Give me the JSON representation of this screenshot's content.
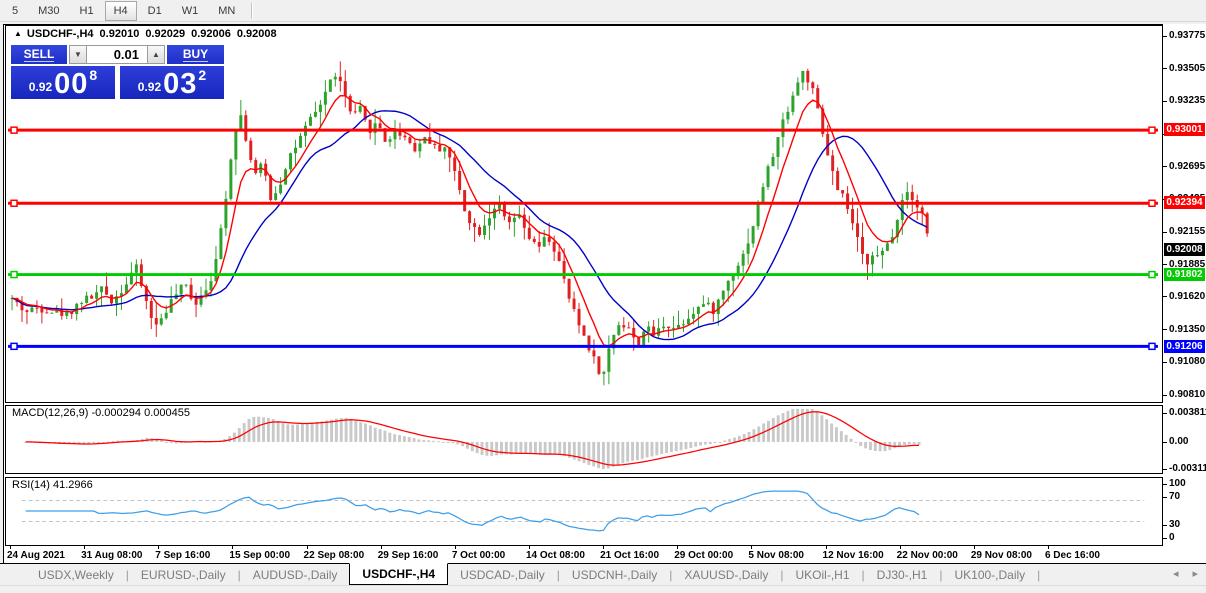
{
  "toolbar": {
    "items": [
      {
        "label": "5",
        "active": false
      },
      {
        "label": "M30",
        "active": false
      },
      {
        "label": "H1",
        "active": false
      },
      {
        "label": "H4",
        "active": true
      },
      {
        "label": "D1",
        "active": false
      },
      {
        "label": "W1",
        "active": false
      },
      {
        "label": "MN",
        "active": false
      }
    ]
  },
  "chart_header": {
    "collapse_icon": "▲",
    "symbol": "USDCHF-,H4",
    "open": "0.92010",
    "high": "0.92029",
    "low": "0.92006",
    "close": "0.92008"
  },
  "trade_panel": {
    "sell_label": "SELL",
    "buy_label": "BUY",
    "volume": "0.01",
    "spin_down_icon": "▼",
    "spin_up_icon": "▲",
    "sell_price": {
      "prefix": "0.92",
      "big": "00",
      "sup": "8"
    },
    "buy_price": {
      "prefix": "0.92",
      "big": "03",
      "sup": "2"
    }
  },
  "chart_data": {
    "type": "candlestick",
    "symbol": "USDCHF-",
    "timeframe": "H4",
    "current_ohlc": {
      "open": 0.9201,
      "high": 0.92029,
      "low": 0.92006,
      "close": 0.92008
    },
    "price_axis": {
      "top_price": 0.93775,
      "bottom_price": 0.9081,
      "ticks": [
        "0.93775",
        "0.93505",
        "0.93235",
        "0.92965",
        "0.92695",
        "0.92425",
        "0.92155",
        "0.91885",
        "0.91620",
        "0.91350",
        "0.91080",
        "0.90810"
      ]
    },
    "x_axis": {
      "labels": [
        "24 Aug 2021",
        "31 Aug 08:00",
        "7 Sep 16:00",
        "15 Sep 00:00",
        "22 Sep 08:00",
        "29 Sep 16:00",
        "7 Oct 00:00",
        "14 Oct 08:00",
        "21 Oct 16:00",
        "29 Oct 00:00",
        "5 Nov 08:00",
        "12 Nov 16:00",
        "22 Nov 00:00",
        "29 Nov 08:00",
        "6 Dec 16:00"
      ]
    },
    "horizontal_lines": [
      {
        "value": 0.93001,
        "label": "0.93001",
        "color": "#ff0000"
      },
      {
        "value": 0.92394,
        "label": "0.92394",
        "color": "#ff0000"
      },
      {
        "value": 0.91802,
        "label": "0.91802",
        "color": "#00cc00"
      },
      {
        "value": 0.91206,
        "label": "0.91206",
        "color": "#0000ff"
      }
    ],
    "current_price_tag": {
      "value": 0.92008,
      "label": "0.92008",
      "bg": "#000000"
    },
    "colors": {
      "up": "#2da32d",
      "down": "#e02020",
      "ma_fast": "#ff0000",
      "ma_slow": "#0000c8"
    },
    "price_path": [
      [
        4,
        0.916
      ],
      [
        18,
        0.9149
      ],
      [
        30,
        0.9153
      ],
      [
        45,
        0.915
      ],
      [
        60,
        0.9147
      ],
      [
        72,
        0.9158
      ],
      [
        85,
        0.9162
      ],
      [
        95,
        0.9168
      ],
      [
        105,
        0.9158
      ],
      [
        118,
        0.9172
      ],
      [
        128,
        0.9188
      ],
      [
        138,
        0.916
      ],
      [
        148,
        0.9136
      ],
      [
        158,
        0.915
      ],
      [
        168,
        0.9163
      ],
      [
        178,
        0.9172
      ],
      [
        188,
        0.9156
      ],
      [
        198,
        0.9168
      ],
      [
        208,
        0.9185
      ],
      [
        218,
        0.924
      ],
      [
        228,
        0.9302
      ],
      [
        234,
        0.9312
      ],
      [
        240,
        0.929
      ],
      [
        248,
        0.9262
      ],
      [
        256,
        0.9272
      ],
      [
        264,
        0.9244
      ],
      [
        272,
        0.9252
      ],
      [
        282,
        0.9278
      ],
      [
        292,
        0.929
      ],
      [
        302,
        0.9306
      ],
      [
        312,
        0.9318
      ],
      [
        322,
        0.9338
      ],
      [
        330,
        0.9348
      ],
      [
        338,
        0.933
      ],
      [
        346,
        0.931
      ],
      [
        354,
        0.9317
      ],
      [
        362,
        0.93
      ],
      [
        372,
        0.9306
      ],
      [
        380,
        0.929
      ],
      [
        390,
        0.93
      ],
      [
        400,
        0.9294
      ],
      [
        410,
        0.9284
      ],
      [
        420,
        0.9296
      ],
      [
        430,
        0.9284
      ],
      [
        440,
        0.9287
      ],
      [
        450,
        0.9262
      ],
      [
        460,
        0.9232
      ],
      [
        472,
        0.9214
      ],
      [
        482,
        0.9226
      ],
      [
        492,
        0.9241
      ],
      [
        502,
        0.922
      ],
      [
        512,
        0.923
      ],
      [
        522,
        0.9213
      ],
      [
        532,
        0.9201
      ],
      [
        542,
        0.9212
      ],
      [
        552,
        0.9196
      ],
      [
        562,
        0.9165
      ],
      [
        572,
        0.9142
      ],
      [
        582,
        0.9124
      ],
      [
        592,
        0.9104
      ],
      [
        598,
        0.9094
      ],
      [
        606,
        0.9126
      ],
      [
        614,
        0.914
      ],
      [
        624,
        0.9136
      ],
      [
        632,
        0.912
      ],
      [
        640,
        0.9136
      ],
      [
        650,
        0.913
      ],
      [
        660,
        0.914
      ],
      [
        670,
        0.9136
      ],
      [
        680,
        0.9142
      ],
      [
        690,
        0.9151
      ],
      [
        700,
        0.9156
      ],
      [
        710,
        0.915
      ],
      [
        720,
        0.9169
      ],
      [
        730,
        0.9184
      ],
      [
        740,
        0.9198
      ],
      [
        750,
        0.9224
      ],
      [
        760,
        0.9258
      ],
      [
        770,
        0.9282
      ],
      [
        780,
        0.931
      ],
      [
        790,
        0.9331
      ],
      [
        798,
        0.9349
      ],
      [
        804,
        0.9342
      ],
      [
        810,
        0.933
      ],
      [
        816,
        0.9308
      ],
      [
        822,
        0.9285
      ],
      [
        828,
        0.9268
      ],
      [
        834,
        0.9248
      ],
      [
        840,
        0.9244
      ],
      [
        846,
        0.923
      ],
      [
        852,
        0.9214
      ],
      [
        858,
        0.9196
      ],
      [
        864,
        0.9191
      ],
      [
        870,
        0.9201
      ],
      [
        876,
        0.9192
      ],
      [
        882,
        0.9203
      ],
      [
        888,
        0.9209
      ],
      [
        894,
        0.9228
      ],
      [
        900,
        0.9246
      ],
      [
        906,
        0.9251
      ],
      [
        912,
        0.924
      ],
      [
        918,
        0.9233
      ],
      [
        922,
        0.9226
      ],
      [
        926,
        0.92008
      ]
    ],
    "indicators": {
      "macd": {
        "label": "MACD(12,26,9) -0.000294 0.000455",
        "main": -0.000294,
        "signal": 0.000455,
        "axis_ticks": [
          "0.003811",
          "0.00",
          "-0.003115"
        ],
        "histogram_color": "#c9c9c9",
        "signal_color": "#ff0000"
      },
      "rsi": {
        "label": "RSI(14) 41.2966",
        "value": 41.2966,
        "levels": [
          70,
          30
        ],
        "axis_ticks": [
          "100",
          "70",
          "30",
          "0"
        ],
        "line_color": "#3f9fe8"
      }
    }
  },
  "tabs": {
    "items": [
      {
        "label": "USDX,Weekly",
        "active": false
      },
      {
        "label": "EURUSD-,Daily",
        "active": false
      },
      {
        "label": "AUDUSD-,Daily",
        "active": false
      },
      {
        "label": "USDCHF-,H4",
        "active": true
      },
      {
        "label": "USDCAD-,Daily",
        "active": false
      },
      {
        "label": "USDCNH-,Daily",
        "active": false
      },
      {
        "label": "XAUUSD-,Daily",
        "active": false
      },
      {
        "label": "UKOil-,H1",
        "active": false
      },
      {
        "label": "DJ30-,H1",
        "active": false
      },
      {
        "label": "UK100-,Daily",
        "active": false
      }
    ],
    "nav_left": "◂",
    "nav_right": "▸"
  }
}
